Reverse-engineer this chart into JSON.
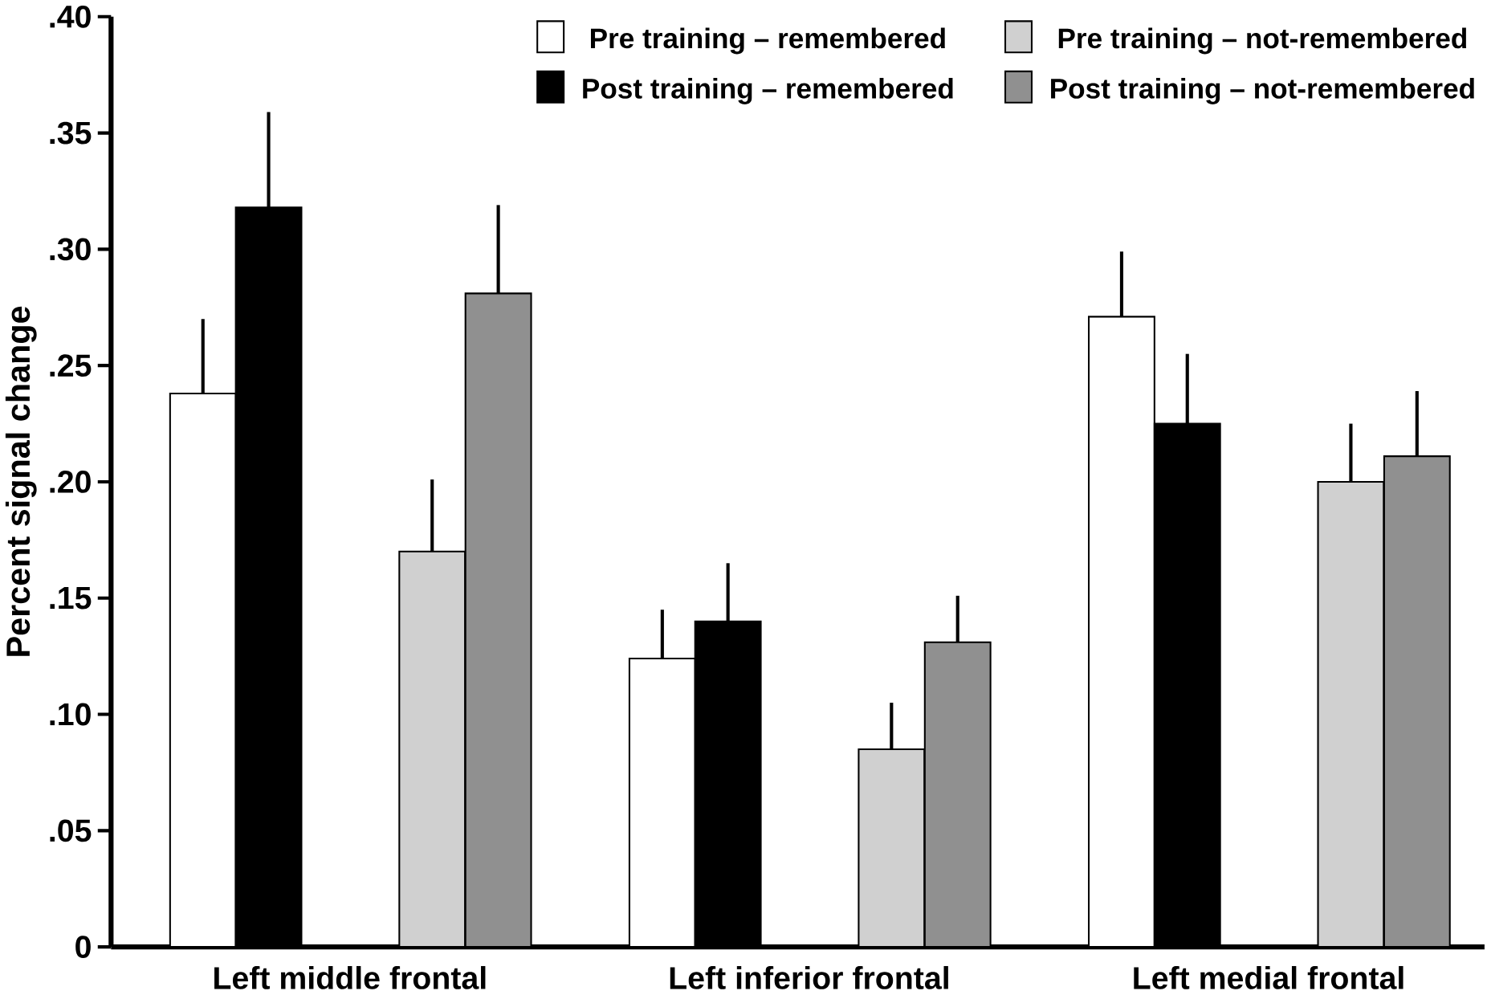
{
  "chart_data": {
    "type": "bar",
    "ylabel": "Percent signal change",
    "categories": [
      "Left middle frontal",
      "Left inferior frontal",
      "Left medial frontal"
    ],
    "series": [
      {
        "name": "Pre training – remembered",
        "color": "#ffffff",
        "values": [
          0.238,
          0.124,
          0.271
        ],
        "errors": [
          [
            0.238,
            0.27
          ],
          [
            0.124,
            0.145
          ],
          [
            0.271,
            0.299
          ]
        ]
      },
      {
        "name": "Post training – remembered",
        "color": "#000000",
        "values": [
          0.318,
          0.14,
          0.225
        ],
        "errors": [
          [
            0.318,
            0.359
          ],
          [
            0.14,
            0.165
          ],
          [
            0.225,
            0.255
          ]
        ]
      },
      {
        "name": "Pre training – not-remembered",
        "color": "#d0d0d0",
        "values": [
          0.17,
          0.085,
          0.2
        ],
        "errors": [
          [
            0.17,
            0.201
          ],
          [
            0.085,
            0.105
          ],
          [
            0.2,
            0.225
          ]
        ]
      },
      {
        "name": "Post training – not-remembered",
        "color": "#909090",
        "values": [
          0.281,
          0.131,
          0.211
        ],
        "errors": [
          [
            0.281,
            0.319
          ],
          [
            0.131,
            0.151
          ],
          [
            0.211,
            0.239
          ]
        ]
      }
    ],
    "ylim": [
      0,
      0.4
    ],
    "yticks": [
      0,
      {
        "value": 0.05,
        "label": ".05"
      },
      {
        "value": 0.1,
        "label": ".10"
      },
      {
        "value": 0.15,
        "label": ".15"
      },
      {
        "value": 0.2,
        "label": ".20"
      },
      {
        "value": 0.25,
        "label": ".25"
      },
      {
        "value": 0.3,
        "label": ".30"
      },
      {
        "value": 0.35,
        "label": ".35"
      },
      {
        "value": 0.4,
        "label": ".40"
      }
    ],
    "legend": "top right",
    "grid": false
  }
}
